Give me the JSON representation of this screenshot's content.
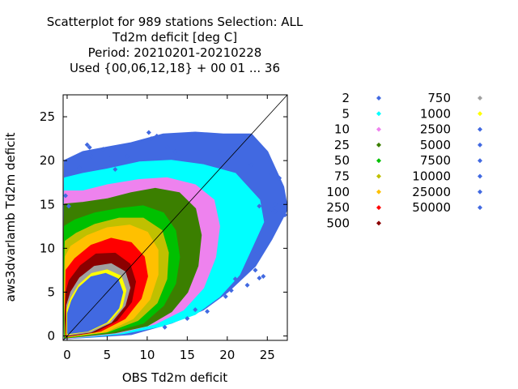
{
  "chart_data": {
    "type": "scatter",
    "title_lines": [
      "Scatterplot for  989 stations Selection: ALL",
      "Td2m deficit [deg C]",
      "Period: 20210201-20210228",
      "Used {00,06,12,18} + 00 01 ... 36"
    ],
    "xlabel": "OBS Td2m deficit",
    "ylabel": "aws3dvarlamb Td2m deficit",
    "xlim": [
      -0.5,
      27.5
    ],
    "ylim": [
      -0.5,
      27.5
    ],
    "xticks": [
      0,
      5,
      10,
      15,
      20,
      25
    ],
    "yticks": [
      0,
      5,
      10,
      15,
      20,
      25
    ],
    "diagonal": true,
    "legend_title": "",
    "legend": [
      {
        "label": "2",
        "color": "#4169e1"
      },
      {
        "label": "5",
        "color": "#00ffff"
      },
      {
        "label": "10",
        "color": "#ee82ee"
      },
      {
        "label": "25",
        "color": "#3b7f00"
      },
      {
        "label": "50",
        "color": "#00c000"
      },
      {
        "label": "75",
        "color": "#c0c000"
      },
      {
        "label": "100",
        "color": "#ffc000"
      },
      {
        "label": "250",
        "color": "#ff0000"
      },
      {
        "label": "500",
        "color": "#8b0000"
      },
      {
        "label": "750",
        "color": "#a0a0a0"
      },
      {
        "label": "1000",
        "color": "#ffff00"
      },
      {
        "label": "2500",
        "color": "#4169e1"
      },
      {
        "label": "5000",
        "color": "#4169e1"
      },
      {
        "label": "7500",
        "color": "#4169e1"
      },
      {
        "label": "10000",
        "color": "#4169e1"
      },
      {
        "label": "25000",
        "color": "#4169e1"
      },
      {
        "label": "50000",
        "color": "#4169e1"
      }
    ],
    "density_bands": [
      {
        "level": "2",
        "color": "#4169e1",
        "polygon": [
          [
            -0.3,
            -0.3
          ],
          [
            8,
            0.2
          ],
          [
            13,
            1.5
          ],
          [
            17,
            3
          ],
          [
            20,
            5
          ],
          [
            23.5,
            8
          ],
          [
            25.5,
            11
          ],
          [
            27.5,
            14.5
          ],
          [
            27,
            17
          ],
          [
            25,
            21
          ],
          [
            23,
            23
          ],
          [
            19.5,
            23
          ],
          [
            16,
            23.2
          ],
          [
            12,
            23
          ],
          [
            8,
            22
          ],
          [
            5,
            21.5
          ],
          [
            2,
            21
          ],
          [
            -0.3,
            20
          ],
          [
            -0.4,
            10
          ]
        ]
      },
      {
        "level": "5",
        "color": "#00ffff",
        "polygon": [
          [
            -0.3,
            -0.3
          ],
          [
            7,
            0.3
          ],
          [
            12,
            1.2
          ],
          [
            16,
            2.5
          ],
          [
            19,
            4.5
          ],
          [
            21.5,
            7
          ],
          [
            23,
            10
          ],
          [
            24.5,
            13
          ],
          [
            24,
            15.5
          ],
          [
            21,
            18.5
          ],
          [
            17,
            19.5
          ],
          [
            13,
            20
          ],
          [
            9,
            19.8
          ],
          [
            5,
            19
          ],
          [
            2,
            18.5
          ],
          [
            -0.3,
            18
          ],
          [
            -0.4,
            9
          ]
        ]
      },
      {
        "level": "10",
        "color": "#ee82ee",
        "polygon": [
          [
            -0.3,
            -0.3
          ],
          [
            6.5,
            0.4
          ],
          [
            11,
            1.4
          ],
          [
            14.5,
            3
          ],
          [
            17,
            5.5
          ],
          [
            18.5,
            9
          ],
          [
            19,
            12.5
          ],
          [
            18.3,
            15.5
          ],
          [
            16,
            17.2
          ],
          [
            12.5,
            18
          ],
          [
            9,
            17.8
          ],
          [
            5,
            17.2
          ],
          [
            2,
            16.5
          ],
          [
            -0.3,
            16.5
          ],
          [
            -0.4,
            8
          ]
        ]
      },
      {
        "level": "25",
        "color": "#3b7f00",
        "polygon": [
          [
            -0.3,
            -0.2
          ],
          [
            6,
            0.4
          ],
          [
            10,
            1.2
          ],
          [
            13,
            2.8
          ],
          [
            15,
            5
          ],
          [
            16.3,
            8
          ],
          [
            16.7,
            11.5
          ],
          [
            16,
            14.5
          ],
          [
            14,
            16.3
          ],
          [
            11,
            16.8
          ],
          [
            8,
            16.3
          ],
          [
            5,
            15.6
          ],
          [
            2,
            15.2
          ],
          [
            -0.3,
            15
          ],
          [
            -0.4,
            7
          ]
        ]
      },
      {
        "level": "50",
        "color": "#00c000",
        "polygon": [
          [
            -0.3,
            -0.2
          ],
          [
            5.5,
            0.5
          ],
          [
            9.5,
            1.5
          ],
          [
            12,
            3.5
          ],
          [
            13.5,
            6
          ],
          [
            14,
            9
          ],
          [
            13.5,
            12
          ],
          [
            12,
            14
          ],
          [
            9.5,
            14.8
          ],
          [
            6.5,
            14.5
          ],
          [
            3.5,
            14
          ],
          [
            1,
            13.2
          ],
          [
            -0.3,
            12.5
          ],
          [
            -0.4,
            6
          ]
        ]
      },
      {
        "level": "75",
        "color": "#c0c000",
        "polygon": [
          [
            -0.2,
            -0.1
          ],
          [
            5,
            0.5
          ],
          [
            8.8,
            1.8
          ],
          [
            11.2,
            3.8
          ],
          [
            12.4,
            6.5
          ],
          [
            12.6,
            9.5
          ],
          [
            11.8,
            12
          ],
          [
            9.5,
            13.4
          ],
          [
            6.5,
            13.4
          ],
          [
            3.5,
            12.7
          ],
          [
            1.2,
            11.7
          ],
          [
            -0.2,
            10.8
          ],
          [
            -0.3,
            5
          ]
        ]
      },
      {
        "level": "100",
        "color": "#ffc000",
        "polygon": [
          [
            -0.2,
            -0.1
          ],
          [
            4.8,
            0.5
          ],
          [
            8.2,
            2
          ],
          [
            10.3,
            4.2
          ],
          [
            11.3,
            7
          ],
          [
            11.3,
            9.8
          ],
          [
            10,
            11.8
          ],
          [
            7.8,
            12.6
          ],
          [
            5,
            12.3
          ],
          [
            2.5,
            11.4
          ],
          [
            0.5,
            10.2
          ],
          [
            -0.2,
            9
          ],
          [
            -0.3,
            4
          ]
        ]
      },
      {
        "level": "250",
        "color": "#ff0000",
        "polygon": [
          [
            -0.1,
            0
          ],
          [
            4.2,
            0.6
          ],
          [
            7.2,
            2
          ],
          [
            9.2,
            4.3
          ],
          [
            10,
            6.8
          ],
          [
            9.6,
            9
          ],
          [
            8,
            10.6
          ],
          [
            5.5,
            11.1
          ],
          [
            3,
            10.3
          ],
          [
            1,
            8.8
          ],
          [
            -0.1,
            7.5
          ],
          [
            -0.2,
            3
          ]
        ]
      },
      {
        "level": "500",
        "color": "#8b0000",
        "polygon": [
          [
            -0.1,
            0
          ],
          [
            3.5,
            0.5
          ],
          [
            6.2,
            1.8
          ],
          [
            8,
            3.9
          ],
          [
            8.5,
            6.2
          ],
          [
            7.8,
            8.2
          ],
          [
            6,
            9.4
          ],
          [
            3.6,
            9.3
          ],
          [
            1.7,
            8
          ],
          [
            0.3,
            6.3
          ],
          [
            -0.1,
            5
          ],
          [
            -0.2,
            2
          ]
        ]
      },
      {
        "level": "750",
        "color": "#a0a0a0",
        "polygon": [
          [
            0,
            0.1
          ],
          [
            3,
            0.5
          ],
          [
            5.5,
            1.6
          ],
          [
            7.2,
            3.5
          ],
          [
            7.8,
            5.5
          ],
          [
            7.2,
            7.3
          ],
          [
            5.5,
            8.2
          ],
          [
            3.4,
            7.9
          ],
          [
            1.6,
            6.6
          ],
          [
            0.5,
            5
          ],
          [
            0,
            3.5
          ]
        ]
      },
      {
        "level": "1000",
        "color": "#ffff00",
        "polygon": [
          [
            0,
            0.2
          ],
          [
            2.8,
            0.6
          ],
          [
            5.2,
            1.6
          ],
          [
            6.8,
            3.3
          ],
          [
            7.3,
            5.2
          ],
          [
            6.7,
            6.8
          ],
          [
            5,
            7.5
          ],
          [
            3.1,
            7.1
          ],
          [
            1.5,
            5.8
          ],
          [
            0.5,
            4.3
          ],
          [
            0,
            3
          ]
        ]
      },
      {
        "level": "2500",
        "color": "#4169e1",
        "polygon": [
          [
            0.1,
            0.3
          ],
          [
            2.6,
            0.6
          ],
          [
            4.9,
            1.6
          ],
          [
            6.4,
            3.2
          ],
          [
            6.9,
            5
          ],
          [
            6.3,
            6.5
          ],
          [
            4.8,
            7.1
          ],
          [
            3,
            6.7
          ],
          [
            1.5,
            5.5
          ],
          [
            0.6,
            4
          ],
          [
            0.1,
            2.6
          ]
        ]
      }
    ],
    "outlier_points": [
      [
        2.5,
        21.8
      ],
      [
        2.8,
        21.5
      ],
      [
        3,
        20.5
      ],
      [
        4.5,
        21.3
      ],
      [
        5.3,
        20.2
      ],
      [
        7.5,
        20.5
      ],
      [
        8.8,
        21.1
      ],
      [
        10.5,
        22.5
      ],
      [
        10.2,
        23.2
      ],
      [
        11.2,
        22.8
      ],
      [
        12.5,
        21.5
      ],
      [
        13.5,
        21
      ],
      [
        15.2,
        22.5
      ],
      [
        15.5,
        23
      ],
      [
        17,
        21.8
      ],
      [
        19,
        21
      ],
      [
        21,
        20.5
      ],
      [
        23,
        19.5
      ],
      [
        25.5,
        18.5
      ],
      [
        26.5,
        18
      ],
      [
        27,
        14
      ],
      [
        26,
        15
      ],
      [
        25.5,
        14.5
      ],
      [
        24,
        14.8
      ],
      [
        24.2,
        10.5
      ],
      [
        23.8,
        9.5
      ],
      [
        23.5,
        7.5
      ],
      [
        24,
        6.6
      ],
      [
        22.5,
        5.8
      ],
      [
        20.5,
        5.2
      ],
      [
        21,
        6.5
      ],
      [
        19.8,
        4.5
      ],
      [
        17.5,
        2.8
      ],
      [
        16,
        3
      ],
      [
        15,
        2
      ],
      [
        12.2,
        1
      ],
      [
        6,
        19
      ],
      [
        1.5,
        19.2
      ],
      [
        0,
        18.5
      ],
      [
        -0.2,
        16
      ],
      [
        0.2,
        14.8
      ],
      [
        24.5,
        6.8
      ],
      [
        26,
        14.2
      ],
      [
        27.2,
        13.8
      ]
    ]
  }
}
